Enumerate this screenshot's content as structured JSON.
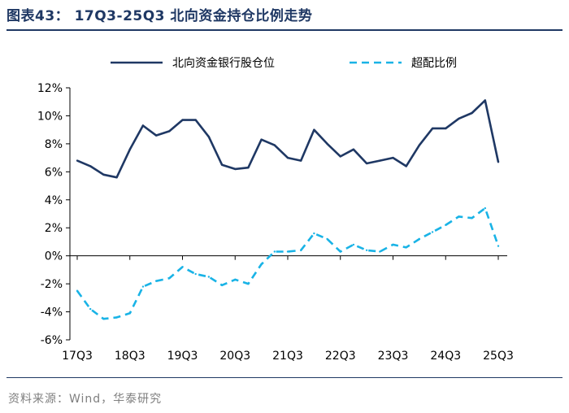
{
  "header": {
    "title": "图表43： 17Q3-25Q3 北向资金持仓比例走势"
  },
  "footer": {
    "source": "资料来源：Wind，华泰研究"
  },
  "colors": {
    "series1": "#1f3864",
    "series2": "#19b3e6",
    "axis": "#000000",
    "title": "#1f3864",
    "source": "#7f7f7f"
  },
  "chart_data": {
    "type": "line",
    "title": "17Q3-25Q3 北向资金持仓比例走势",
    "xlabel": "",
    "ylabel": "",
    "ylim": [
      -6,
      12
    ],
    "y_ticks": [
      -6,
      -4,
      -2,
      0,
      2,
      4,
      6,
      8,
      10,
      12
    ],
    "y_tick_labels": [
      "-6%",
      "-4%",
      "-2%",
      "0%",
      "2%",
      "4%",
      "6%",
      "8%",
      "10%",
      "12%"
    ],
    "x_tick_labels": [
      "17Q3",
      "18Q3",
      "19Q3",
      "20Q3",
      "21Q3",
      "22Q3",
      "23Q3",
      "24Q3",
      "25Q3"
    ],
    "x_tick_positions": [
      0,
      4,
      8,
      12,
      16,
      20,
      24,
      28,
      32
    ],
    "x_count": 33,
    "grid": false,
    "legend_position": "top",
    "series": [
      {
        "name": "北向资金银行股仓位",
        "style": "solid",
        "values": [
          6.8,
          6.4,
          5.8,
          5.6,
          7.6,
          9.3,
          8.6,
          8.9,
          9.7,
          9.7,
          8.5,
          6.5,
          6.2,
          6.3,
          8.3,
          7.9,
          7.0,
          6.8,
          9.0,
          8.0,
          7.1,
          7.6,
          6.6,
          6.8,
          7.0,
          6.4,
          7.9,
          9.1,
          9.1,
          9.8,
          10.2,
          11.1,
          6.7
        ]
      },
      {
        "name": "超配比例",
        "style": "dashed",
        "values": [
          -2.5,
          -3.8,
          -4.5,
          -4.4,
          -4.1,
          -2.2,
          -1.8,
          -1.6,
          -0.8,
          -1.3,
          -1.5,
          -2.1,
          -1.7,
          -2.0,
          -0.6,
          0.3,
          0.3,
          0.4,
          1.6,
          1.2,
          0.3,
          0.8,
          0.4,
          0.3,
          0.8,
          0.6,
          1.2,
          1.7,
          2.2,
          2.8,
          2.7,
          3.4,
          0.7
        ]
      }
    ]
  }
}
